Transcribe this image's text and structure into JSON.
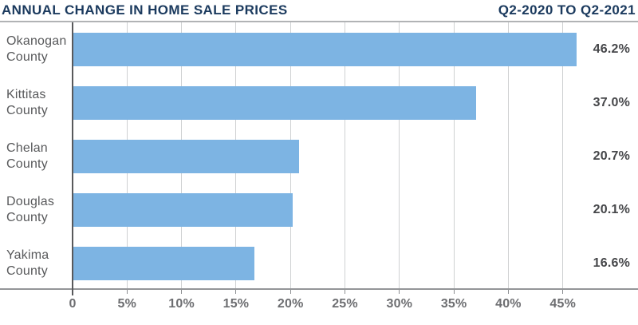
{
  "header": {
    "title": "ANNUAL CHANGE IN HOME SALE PRICES",
    "subtitle": "Q2-2020 TO Q2-2021"
  },
  "chart_data": {
    "type": "bar",
    "orientation": "horizontal",
    "title": "ANNUAL CHANGE IN HOME SALE PRICES",
    "subtitle": "Q2-2020 TO Q2-2021",
    "categories": [
      "Okanogan County",
      "Kittitas County",
      "Chelan County",
      "Douglas County",
      "Yakima County"
    ],
    "values": [
      46.2,
      37.0,
      20.7,
      20.1,
      16.6
    ],
    "value_labels": [
      "46.2%",
      "37.0%",
      "20.7%",
      "20.1%",
      "16.6%"
    ],
    "x_tick_values": [
      0,
      5,
      10,
      15,
      20,
      25,
      30,
      35,
      40,
      45
    ],
    "x_tick_labels": [
      "0",
      "5%",
      "10%",
      "15%",
      "20%",
      "25%",
      "30%",
      "35%",
      "40%",
      "45%"
    ],
    "xlim": [
      0,
      51.9
    ],
    "grid": true,
    "legend": "none",
    "colors": {
      "bar": "#7db4e3",
      "title": "#1b3a5e",
      "category_label": "#58595b",
      "value_label": "#46474a",
      "gridline": "#cfd1d2",
      "zero_axis": "#58595b",
      "baseline": "#939598",
      "tick_label": "#6d6e71"
    }
  }
}
